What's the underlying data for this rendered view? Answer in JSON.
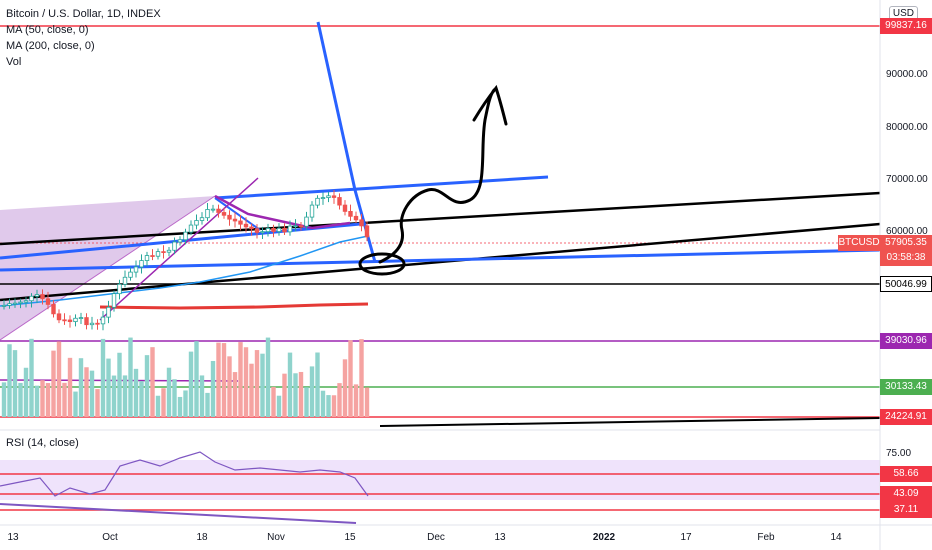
{
  "header": {
    "title": "Bitcoin / U.S. Dollar, 1D, INDEX",
    "indicators": [
      "MA (50, close, 0)",
      "MA (200, close, 0)",
      "Vol"
    ],
    "currency": "USD"
  },
  "price_axis": {
    "ticks": [
      "90000.00",
      "80000.00",
      "70000.00",
      "60000.00"
    ]
  },
  "price_tags": {
    "top": "99837.16",
    "symbol": "BTCUSD",
    "last_price": "57905.35",
    "countdown": "03:58:38",
    "support1": "50046.99",
    "support2": "39030.96",
    "support3": "30133.43",
    "support4": "24224.91"
  },
  "rsi": {
    "label": "RSI (14, close)",
    "axis_top": "75.00",
    "levels": [
      "58.66",
      "43.09",
      "37.11"
    ]
  },
  "time_axis": [
    "13",
    "Oct",
    "18",
    "Nov",
    "15",
    "Dec",
    "13",
    "2022",
    "17",
    "Feb",
    "14"
  ],
  "colors": {
    "candle_up": "#26a69a",
    "candle_down": "#ef5350",
    "red_line": "#f23645",
    "blue_line": "#2962ff",
    "purple_line": "#9c27b0",
    "green_line": "#4caf50",
    "black_line": "#000000"
  }
}
